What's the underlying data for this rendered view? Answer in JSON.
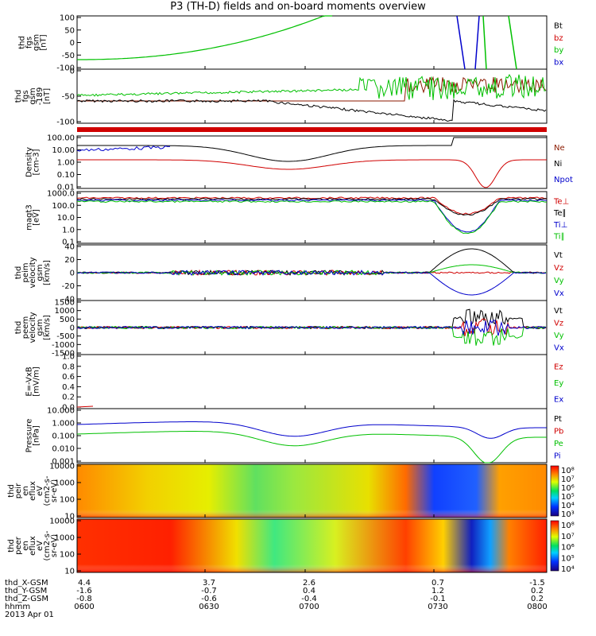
{
  "title": "P3 (TH-D) fields and on-board moments overview",
  "colors": {
    "black": "#000000",
    "red": "#d00000",
    "green": "#00c000",
    "blue": "#0000cc",
    "brown": "#8b1a00"
  },
  "panels": [
    {
      "ylabel": [
        "thd",
        "fgs",
        "gsm",
        "[nT]"
      ],
      "yticks": [
        "100",
        "50",
        "0",
        "-50",
        "-100"
      ],
      "legend": [
        "Bt",
        "bz",
        "by",
        "bx"
      ],
      "legend_colors": [
        "black",
        "red",
        "green",
        "blue"
      ]
    },
    {
      "ylabel": [
        "thd",
        "fgs",
        "gsm",
        "-189",
        "[nT]"
      ],
      "yticks": [
        "0",
        "-50",
        "-100"
      ],
      "legend": [],
      "legend_colors": []
    },
    {
      "ylabel": [
        "Density",
        "[cm-3]"
      ],
      "yticks": [
        "100.00",
        "10.00",
        "1.00",
        "0.10",
        "0.01"
      ],
      "legend": [
        "Ne",
        "Ni",
        "Npot"
      ],
      "legend_colors": [
        "brown",
        "black",
        "blue"
      ]
    },
    {
      "ylabel": [
        "magt3",
        "[eV]"
      ],
      "yticks": [
        "1000.0",
        "100.0",
        "10.0",
        "1.0",
        "0.1"
      ],
      "legend": [
        "Te⊥",
        "Te∥",
        "Ti⊥",
        "Ti∥"
      ],
      "legend_colors": [
        "red",
        "black",
        "blue",
        "green"
      ]
    },
    {
      "ylabel": [
        "thd",
        "peim",
        "velocity",
        "gsm",
        "[km/s]"
      ],
      "yticks": [
        "40",
        "20",
        "0",
        "-20",
        "-40"
      ],
      "legend": [
        "Vt",
        "Vz",
        "Vy",
        "Vx"
      ],
      "legend_colors": [
        "black",
        "red",
        "green",
        "blue"
      ]
    },
    {
      "ylabel": [
        "thd",
        "peem",
        "velocity",
        "gsm",
        "[km/s]"
      ],
      "yticks": [
        "1500",
        "1000",
        "500",
        "0",
        "-500",
        "-1000",
        "-1500"
      ],
      "legend": [
        "Vt",
        "Vz",
        "Vy",
        "Vx"
      ],
      "legend_colors": [
        "black",
        "red",
        "green",
        "blue"
      ]
    },
    {
      "ylabel": [
        "E=-VxB",
        "[mV/m]"
      ],
      "yticks": [
        "1.0",
        "0.8",
        "0.6",
        "0.4",
        "0.2",
        "0.0"
      ],
      "legend": [
        "Ez",
        "Ey",
        "Ex"
      ],
      "legend_colors": [
        "red",
        "green",
        "blue"
      ]
    },
    {
      "ylabel": [
        "Pressure",
        "[nPa]"
      ],
      "yticks": [
        "10.000",
        "1.000",
        "0.100",
        "0.010",
        "0.001"
      ],
      "legend": [
        "Pt",
        "Pb",
        "Pe",
        "Pi"
      ],
      "legend_colors": [
        "black",
        "red",
        "green",
        "blue"
      ]
    },
    {
      "ylabel": [
        "thd",
        "peir",
        "en",
        "eflux",
        "eV",
        "(cm2-s-",
        "sr-eV)"
      ],
      "yticks": [
        "10000",
        "1000",
        "100",
        "10"
      ],
      "legend": [],
      "legend_colors": [],
      "colorbar": [
        "10⁸",
        "10⁷",
        "10⁶",
        "10⁵",
        "10⁴",
        "10³"
      ]
    },
    {
      "ylabel": [
        "thd",
        "peer",
        "en",
        "eflux",
        "eV",
        "(cm2-s-",
        "sr-eV)"
      ],
      "yticks": [
        "10000",
        "1000",
        "100",
        "10"
      ],
      "legend": [],
      "legend_colors": [],
      "colorbar": [
        "10⁸",
        "10⁷",
        "10⁶",
        "10⁵",
        "10⁴"
      ]
    }
  ],
  "footer": {
    "rows": [
      {
        "name": "thd_X-GSM",
        "values": [
          "4.4",
          "3.7",
          "2.6",
          "0.7",
          "-1.5"
        ]
      },
      {
        "name": "thd_Y-GSM",
        "values": [
          "-1.6",
          "-0.7",
          "0.4",
          "1.2",
          "0.2"
        ]
      },
      {
        "name": "thd_Z-GSM",
        "values": [
          "-0.8",
          "-0.6",
          "-0.4",
          "-0.1",
          "0.2"
        ]
      },
      {
        "name": "hhmm",
        "values": [
          "0600",
          "0630",
          "0700",
          "0730",
          "0800"
        ]
      }
    ],
    "date": "2013 Apr 01"
  },
  "chart_data": {
    "type": "line",
    "title": "P3 (TH-D) fields and on-board moments overview",
    "x": [
      "0600",
      "0630",
      "0700",
      "0730",
      "0800"
    ],
    "series": [
      {
        "name": "by",
        "panel": "fgs",
        "x": [
          "0600",
          "0630",
          "0730"
        ],
        "values": [
          -75,
          -40,
          100
        ]
      },
      {
        "name": "Ne",
        "panel": "Density",
        "x": [
          "0600",
          "0630",
          "0700",
          "0730",
          "0745",
          "0800"
        ],
        "values": [
          2.5,
          4,
          1.5,
          3,
          0.01,
          2.5
        ]
      },
      {
        "name": "Ni",
        "panel": "Density",
        "x": [
          "0600",
          "0630",
          "0700",
          "0730",
          "0800"
        ],
        "values": [
          40,
          80,
          2,
          100,
          100
        ]
      },
      {
        "name": "Pi",
        "panel": "Pressure",
        "x": [
          "0600",
          "0630",
          "0700",
          "0730",
          "0745",
          "0800"
        ],
        "values": [
          1.5,
          2,
          0.07,
          1,
          0.06,
          1.5
        ]
      },
      {
        "name": "Pe",
        "panel": "Pressure",
        "x": [
          "0600",
          "0630",
          "0700",
          "0730",
          "0745",
          "0800"
        ],
        "values": [
          0.2,
          0.4,
          0.015,
          0.2,
          0.001,
          0.2
        ]
      }
    ]
  }
}
